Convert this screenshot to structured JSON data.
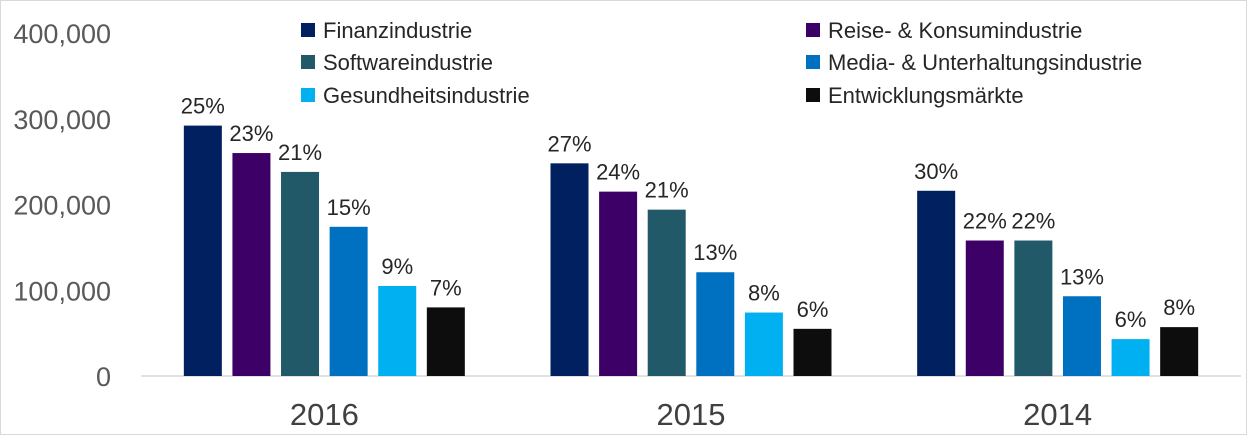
{
  "chart_data": {
    "type": "bar",
    "title": "",
    "xlabel": "",
    "ylabel": "",
    "ylim": [
      0,
      400000
    ],
    "yticks": [
      0,
      100000,
      200000,
      300000,
      400000
    ],
    "ytick_labels": [
      "0",
      "100,000",
      "200,000",
      "300,000",
      "400,000"
    ],
    "grid": false,
    "legend_position": "top",
    "categories": [
      "2016",
      "2015",
      "2014"
    ],
    "series": [
      {
        "name": "Finanzindustrie",
        "color": "#002060",
        "values": [
          292000,
          248000,
          216000
        ],
        "labels": [
          "25%",
          "27%",
          "30%"
        ]
      },
      {
        "name": "Reise- & Konsumindustrie",
        "color": "#3d0066",
        "values": [
          260000,
          215000,
          158000
        ],
        "labels": [
          "23%",
          "24%",
          "22%"
        ]
      },
      {
        "name": "Softwareindustrie",
        "color": "#215968",
        "values": [
          238000,
          194000,
          158000
        ],
        "labels": [
          "21%",
          "21%",
          "22%"
        ]
      },
      {
        "name": "Media- & Unterhaltungsindustrie",
        "color": "#0070c0",
        "values": [
          174000,
          121000,
          93000
        ],
        "labels": [
          "15%",
          "13%",
          "13%"
        ]
      },
      {
        "name": "Gesundheitsindustrie",
        "color": "#00b0f0",
        "values": [
          105000,
          74000,
          43000
        ],
        "labels": [
          "9%",
          "8%",
          "6%"
        ]
      },
      {
        "name": "Entwicklungsmärkte",
        "color": "#0d0d0d",
        "values": [
          80000,
          55000,
          57000
        ],
        "labels": [
          "7%",
          "6%",
          "8%"
        ]
      }
    ]
  }
}
